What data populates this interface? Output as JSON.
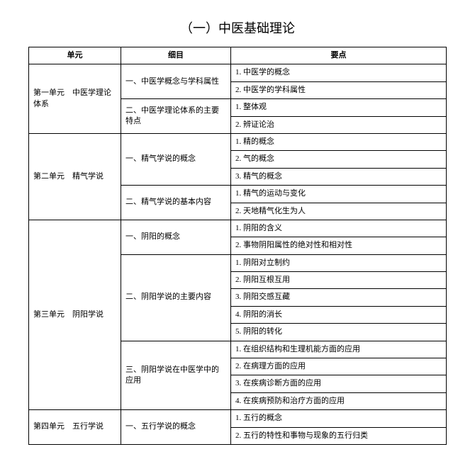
{
  "title": "（一）中医基础理论",
  "headers": {
    "unit": "单元",
    "section": "细目",
    "point": "要点"
  },
  "rows": [
    {
      "unit": "第一单元　中医学理论体系",
      "unit_rowspan": 4,
      "section": "一、中医学概念与学科属性",
      "section_rowspan": 2,
      "point": "1. 中医学的概念"
    },
    {
      "point": "2. 中医学的学科属性"
    },
    {
      "section": "二、中医学理论体系的主要特点",
      "section_rowspan": 2,
      "point": "1. 整体观"
    },
    {
      "point": "2. 辨证论治"
    },
    {
      "unit": "第二单元　精气学说",
      "unit_rowspan": 5,
      "section": "一、精气学说的概念",
      "section_rowspan": 3,
      "point": "1. 精的概念"
    },
    {
      "point": "2. 气的概念"
    },
    {
      "point": "3. 精气的概念"
    },
    {
      "section": "二、精气学说的基本内容",
      "section_rowspan": 2,
      "point": "1. 精气的运动与变化"
    },
    {
      "point": "2. 天地精气化生为人"
    },
    {
      "unit": "第三单元　阴阳学说",
      "unit_rowspan": 11,
      "section": "一、阴阳的概念",
      "section_rowspan": 2,
      "point": "1. 阴阳的含义"
    },
    {
      "point": "2. 事物阴阳属性的绝对性和相对性"
    },
    {
      "section": "二、阴阳学说的主要内容",
      "section_rowspan": 5,
      "point": "1. 阴阳对立制约"
    },
    {
      "point": "2. 阴阳互根互用"
    },
    {
      "point": "3. 阴阳交感互藏"
    },
    {
      "point": "4. 阴阳的消长"
    },
    {
      "point": "5. 阴阳的转化"
    },
    {
      "section": "三、阴阳学说在中医学中的应用",
      "section_rowspan": 4,
      "point": "1. 在组织结构和生理机能方面的应用"
    },
    {
      "point": "2. 在病理方面的应用"
    },
    {
      "point": "3. 在疾病诊断方面的应用"
    },
    {
      "point": "4. 在疾病预防和治疗方面的应用"
    },
    {
      "unit": "第四单元　五行学说",
      "unit_rowspan": 2,
      "section": "一、五行学说的概念",
      "section_rowspan": 2,
      "point": "1. 五行的概念"
    },
    {
      "point": "2. 五行的特性和事物与现象的五行归类"
    }
  ]
}
